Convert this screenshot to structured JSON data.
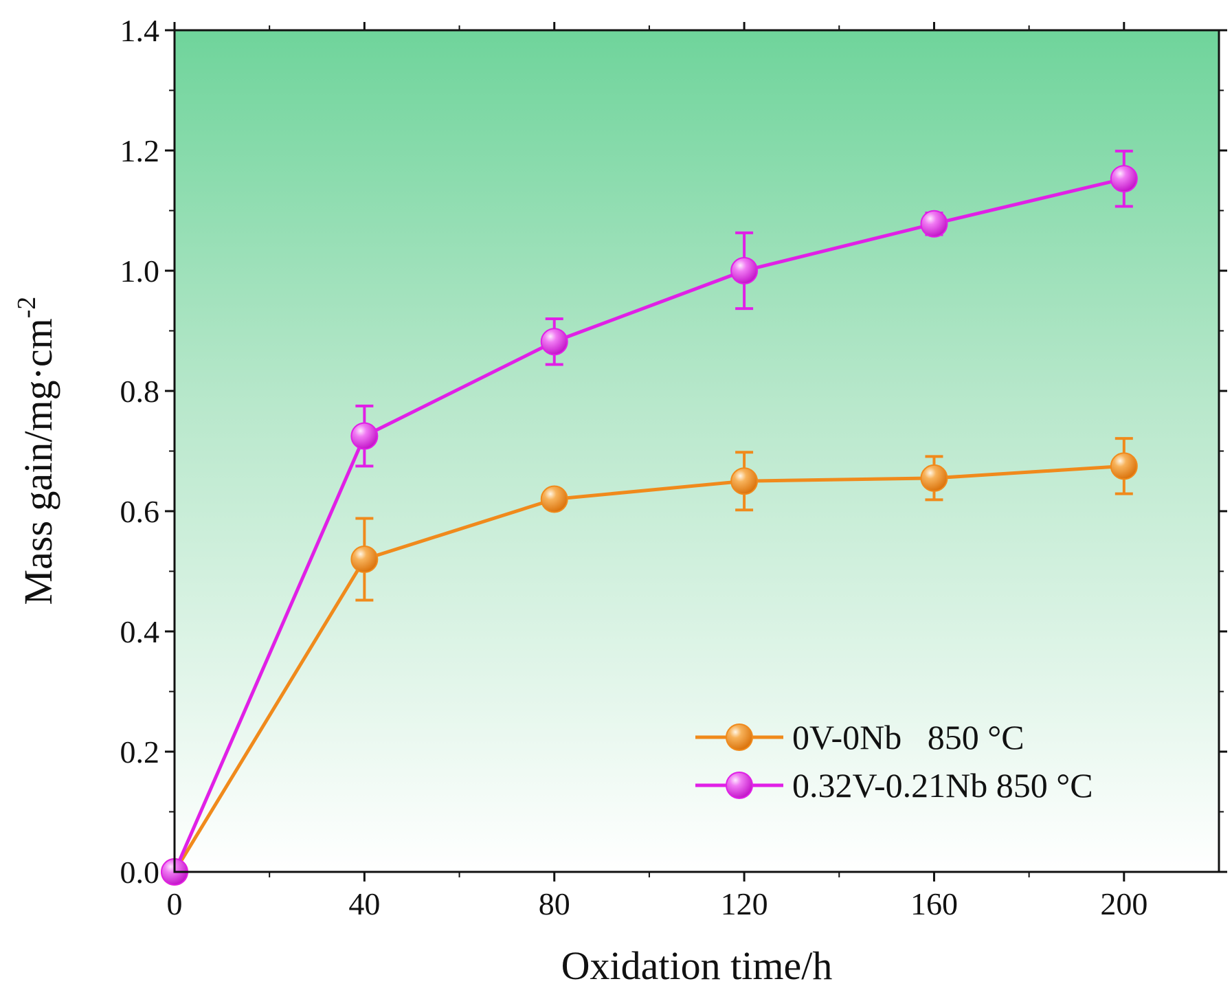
{
  "chart_data": {
    "type": "line",
    "title": "",
    "xlabel": "Oxidation time/h",
    "ylabel_main": "Mass gain/mg·cm",
    "ylabel_sup": "-2",
    "xlim": [
      0,
      220
    ],
    "ylim": [
      0,
      1.4
    ],
    "xticks": [
      0,
      40,
      80,
      120,
      160,
      200
    ],
    "xtick_labels": [
      "0",
      "40",
      "80",
      "120",
      "160",
      "200"
    ],
    "yticks": [
      0.0,
      0.2,
      0.4,
      0.6,
      0.8,
      1.0,
      1.2,
      1.4
    ],
    "ytick_labels": [
      "0.0",
      "0.2",
      "0.4",
      "0.6",
      "0.8",
      "1.0",
      "1.2",
      "1.4"
    ],
    "grid": false,
    "legend_position": "bottom-right",
    "background_gradient": [
      "#6fd49b",
      "#ffffff"
    ],
    "series": [
      {
        "name": "0V-0Nb   850 °C",
        "color": "#f08a1c",
        "x": [
          0,
          40,
          80,
          120,
          160,
          200
        ],
        "values": [
          0.0,
          0.52,
          0.62,
          0.65,
          0.655,
          0.675
        ],
        "error": [
          0,
          0.068,
          0.012,
          0.048,
          0.036,
          0.046
        ]
      },
      {
        "name": "0.32V-0.21Nb 850 °C",
        "color": "#e020e6",
        "x": [
          0,
          40,
          80,
          120,
          160,
          200
        ],
        "values": [
          0.0,
          0.725,
          0.882,
          1.0,
          1.078,
          1.153
        ],
        "error": [
          0,
          0.05,
          0.038,
          0.063,
          0.018,
          0.046
        ]
      }
    ]
  }
}
